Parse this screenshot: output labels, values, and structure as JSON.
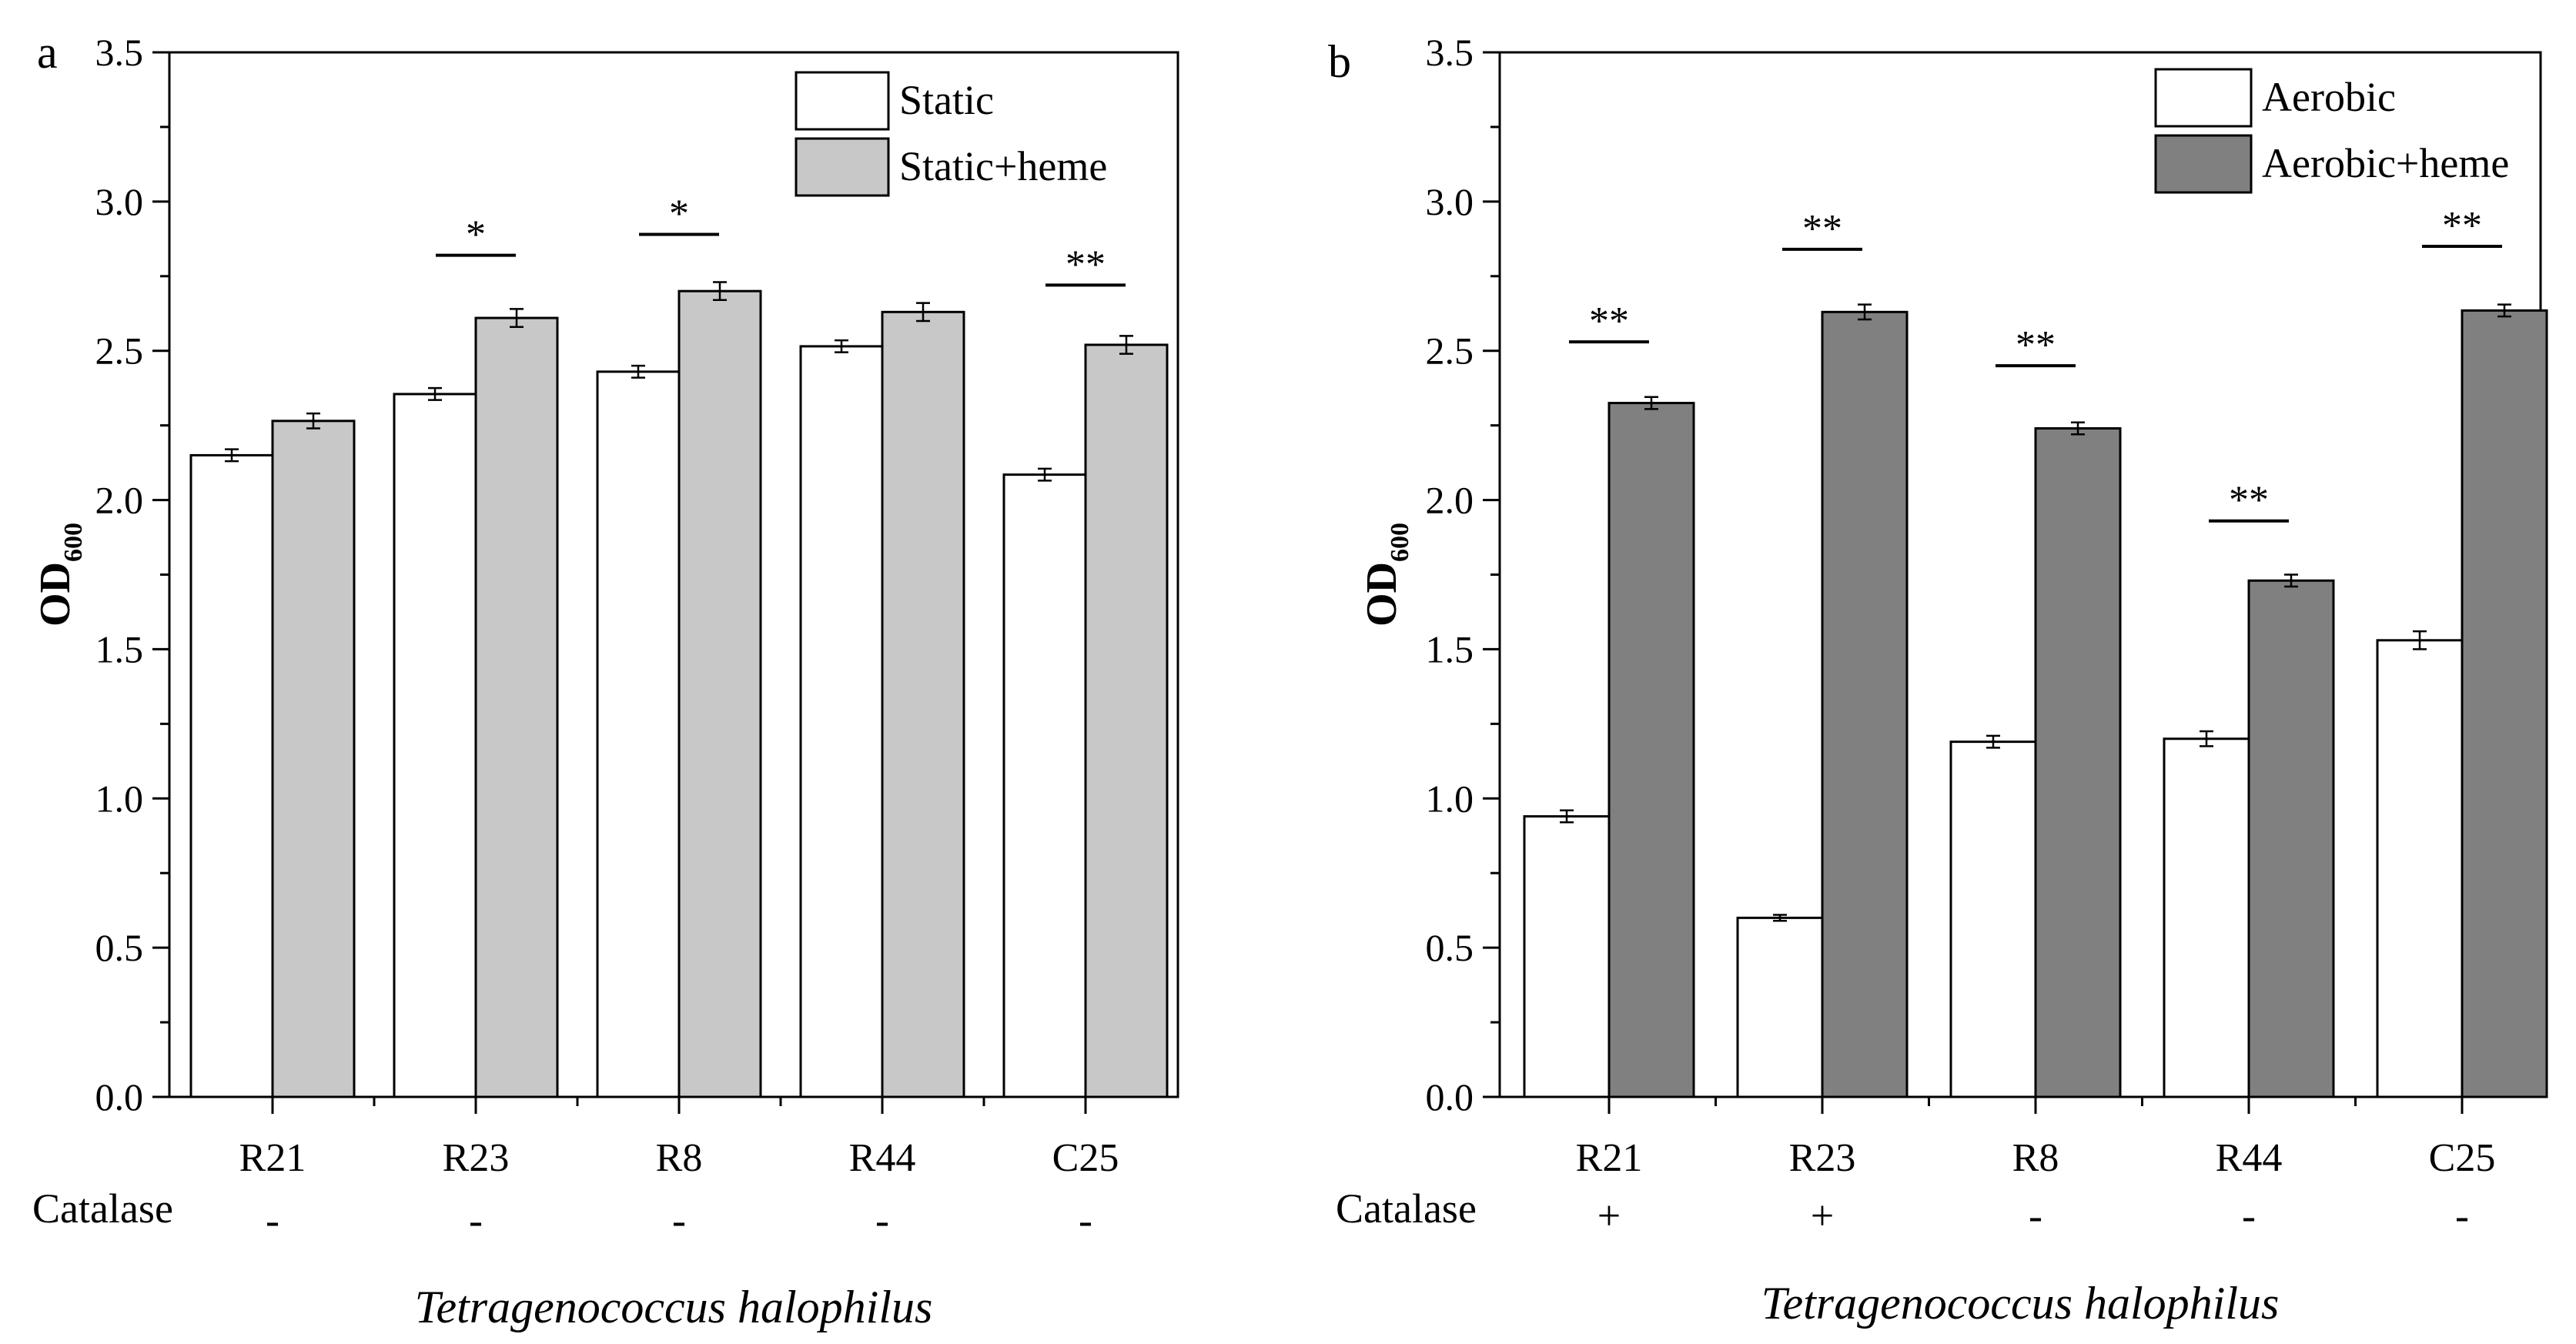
{
  "chart_data": [
    {
      "type": "bar",
      "panel": "a",
      "title": "",
      "xlabel": "Tetragenococcus halophilus",
      "ylabel": "OD",
      "ylabel_subscript": "600",
      "ylim": [
        0,
        3.5
      ],
      "yticks": [
        "0.0",
        "0.5",
        "1.0",
        "1.5",
        "2.0",
        "2.5",
        "3.0",
        "3.5"
      ],
      "categories": [
        "R21",
        "R23",
        "R8",
        "R44",
        "C25"
      ],
      "catalase_label": "Catalase",
      "catalase": [
        "-",
        "-",
        "-",
        "-",
        "-"
      ],
      "legend_position": "top-right",
      "series": [
        {
          "name": "Static",
          "color": "#ffffff",
          "values": [
            2.15,
            2.355,
            2.43,
            2.515,
            2.085
          ],
          "errors": [
            0.02,
            0.02,
            0.02,
            0.02,
            0.02
          ]
        },
        {
          "name": "Static+heme",
          "color": "#c8c8c8",
          "values": [
            2.265,
            2.61,
            2.7,
            2.63,
            2.52
          ],
          "errors": [
            0.025,
            0.03,
            0.03,
            0.03,
            0.03
          ]
        }
      ],
      "significance": [
        {
          "category": "R23",
          "label": "*",
          "line_y": 2.82
        },
        {
          "category": "R8",
          "label": "*",
          "line_y": 2.89
        },
        {
          "category": "C25",
          "label": "**",
          "line_y": 2.72
        }
      ]
    },
    {
      "type": "bar",
      "panel": "b",
      "title": "",
      "xlabel": "Tetragenococcus halophilus",
      "ylabel": "OD",
      "ylabel_subscript": "600",
      "ylim": [
        0,
        3.5
      ],
      "yticks": [
        "0.0",
        "0.5",
        "1.0",
        "1.5",
        "2.0",
        "2.5",
        "3.0",
        "3.5"
      ],
      "categories": [
        "R21",
        "R23",
        "R8",
        "R44",
        "C25"
      ],
      "catalase_label": "Catalase",
      "catalase": [
        "+",
        "+",
        "-",
        "-",
        "-"
      ],
      "legend_position": "top-right",
      "series": [
        {
          "name": "Aerobic",
          "color": "#ffffff",
          "values": [
            0.94,
            0.6,
            1.19,
            1.2,
            1.53
          ],
          "errors": [
            0.02,
            0.01,
            0.02,
            0.025,
            0.03
          ]
        },
        {
          "name": "Aerobic+heme",
          "color": "#808080",
          "values": [
            2.325,
            2.63,
            2.24,
            1.73,
            2.635
          ],
          "errors": [
            0.02,
            0.025,
            0.02,
            0.02,
            0.02
          ]
        }
      ],
      "significance": [
        {
          "category": "R21",
          "label": "**",
          "line_y": 2.53
        },
        {
          "category": "R23",
          "label": "**",
          "line_y": 2.84
        },
        {
          "category": "R8",
          "label": "**",
          "line_y": 2.45
        },
        {
          "category": "R44",
          "label": "**",
          "line_y": 1.93
        },
        {
          "category": "C25",
          "label": "**",
          "line_y": 2.85
        }
      ]
    }
  ]
}
